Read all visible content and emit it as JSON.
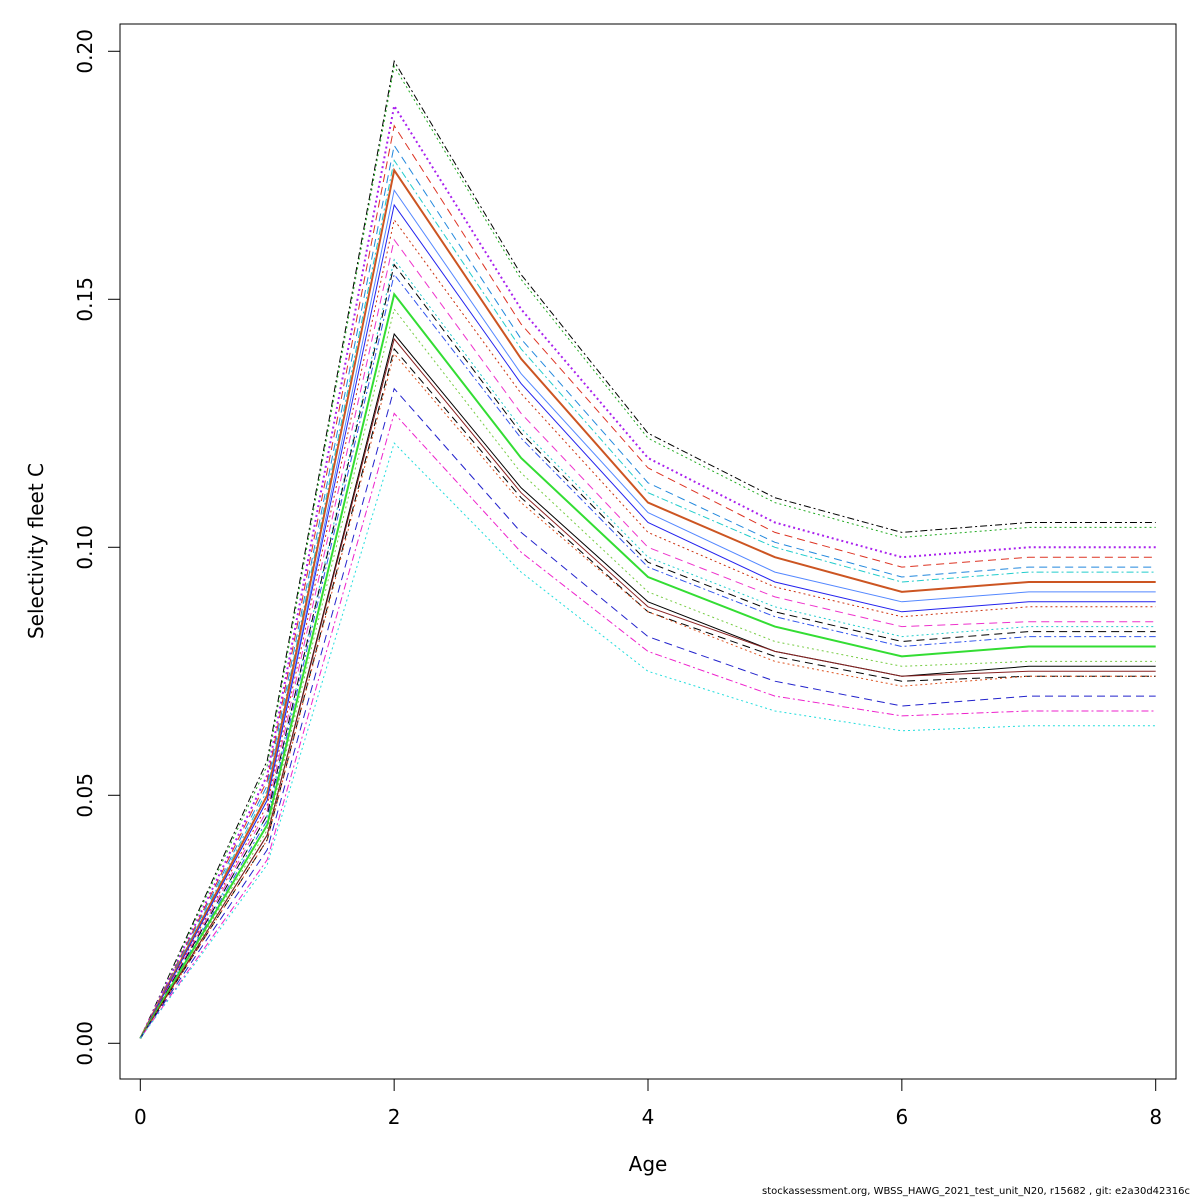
{
  "chart_data": {
    "type": "line",
    "title": "",
    "xlabel": "Age",
    "ylabel": "Selectivity fleet C",
    "x": [
      0,
      1,
      2,
      3,
      4,
      5,
      6,
      7,
      8
    ],
    "xlim": [
      -0.16,
      8.16
    ],
    "ylim": [
      -0.0072,
      0.2055
    ],
    "xticks": [
      "0",
      "2",
      "4",
      "6",
      "8"
    ],
    "yticks": [
      "0.00",
      "0.05",
      "0.10",
      "0.15",
      "0.20"
    ],
    "grid": false,
    "legend": "none",
    "series": [
      {
        "values": [
          0.001,
          0.057,
          0.198,
          0.155,
          0.123,
          0.11,
          0.103,
          0.105,
          0.105
        ],
        "color": "#000000",
        "dash": "dashdot",
        "width": 1
      },
      {
        "values": [
          0.001,
          0.056,
          0.197,
          0.154,
          0.122,
          0.109,
          0.102,
          0.104,
          0.104
        ],
        "color": "#22aa22",
        "dash": "dotted",
        "width": 1
      },
      {
        "values": [
          0.001,
          0.054,
          0.189,
          0.148,
          0.118,
          0.105,
          0.098,
          0.1,
          0.1
        ],
        "color": "#aa22ee",
        "dash": "dotted",
        "width": 2
      },
      {
        "values": [
          0.001,
          0.053,
          0.185,
          0.145,
          0.116,
          0.103,
          0.096,
          0.098,
          0.098
        ],
        "color": "#dd3322",
        "dash": "dashed",
        "width": 1
      },
      {
        "values": [
          0.001,
          0.052,
          0.181,
          0.142,
          0.113,
          0.101,
          0.094,
          0.096,
          0.096
        ],
        "color": "#2288dd",
        "dash": "dashed",
        "width": 1
      },
      {
        "values": [
          0.001,
          0.051,
          0.178,
          0.14,
          0.111,
          0.1,
          0.093,
          0.095,
          0.095
        ],
        "color": "#22cccc",
        "dash": "dashdot",
        "width": 1
      },
      {
        "values": [
          0.001,
          0.05,
          0.176,
          0.138,
          0.109,
          0.098,
          0.091,
          0.093,
          0.093
        ],
        "color": "#cc5522",
        "dash": "solid",
        "width": 2
      },
      {
        "values": [
          0.001,
          0.049,
          0.172,
          0.135,
          0.107,
          0.095,
          0.089,
          0.091,
          0.091
        ],
        "color": "#5588ff",
        "dash": "solid",
        "width": 1
      },
      {
        "values": [
          0.001,
          0.049,
          0.169,
          0.133,
          0.105,
          0.093,
          0.087,
          0.089,
          0.089
        ],
        "color": "#2222ee",
        "dash": "solid",
        "width": 1
      },
      {
        "values": [
          0.001,
          0.048,
          0.166,
          0.131,
          0.103,
          0.092,
          0.086,
          0.088,
          0.088
        ],
        "color": "#cc3311",
        "dash": "dotted",
        "width": 1
      },
      {
        "values": [
          0.001,
          0.047,
          0.162,
          0.127,
          0.1,
          0.09,
          0.084,
          0.085,
          0.085
        ],
        "color": "#ee33cc",
        "dash": "dashed",
        "width": 1
      },
      {
        "values": [
          0.001,
          0.046,
          0.158,
          0.124,
          0.098,
          0.088,
          0.082,
          0.084,
          0.084
        ],
        "color": "#22cccc",
        "dash": "dotted",
        "width": 1
      },
      {
        "values": [
          0.001,
          0.046,
          0.157,
          0.123,
          0.097,
          0.087,
          0.081,
          0.083,
          0.083
        ],
        "color": "#000000",
        "dash": "dashed",
        "width": 1
      },
      {
        "values": [
          0.001,
          0.045,
          0.155,
          0.122,
          0.096,
          0.086,
          0.08,
          0.082,
          0.082
        ],
        "color": "#3355ee",
        "dash": "dashdot",
        "width": 1
      },
      {
        "values": [
          0.001,
          0.044,
          0.151,
          0.118,
          0.094,
          0.084,
          0.078,
          0.08,
          0.08
        ],
        "color": "#33dd33",
        "dash": "solid",
        "width": 2
      },
      {
        "values": [
          0.001,
          0.043,
          0.148,
          0.115,
          0.091,
          0.081,
          0.076,
          0.077,
          0.077
        ],
        "color": "#77cc44",
        "dash": "dotted",
        "width": 1
      },
      {
        "values": [
          0.001,
          0.042,
          0.143,
          0.112,
          0.089,
          0.079,
          0.074,
          0.076,
          0.076
        ],
        "color": "#000000",
        "dash": "solid",
        "width": 1
      },
      {
        "values": [
          0.001,
          0.042,
          0.142,
          0.111,
          0.088,
          0.079,
          0.074,
          0.075,
          0.075
        ],
        "color": "#882222",
        "dash": "solid",
        "width": 1
      },
      {
        "values": [
          0.001,
          0.041,
          0.14,
          0.11,
          0.087,
          0.078,
          0.073,
          0.074,
          0.074
        ],
        "color": "#000000",
        "dash": "dashed",
        "width": 1
      },
      {
        "values": [
          0.001,
          0.041,
          0.139,
          0.109,
          0.087,
          0.077,
          0.072,
          0.074,
          0.074
        ],
        "color": "#dd5522",
        "dash": "dotted",
        "width": 1
      },
      {
        "values": [
          0.001,
          0.039,
          0.132,
          0.103,
          0.082,
          0.073,
          0.068,
          0.07,
          0.07
        ],
        "color": "#2222cc",
        "dash": "dashed",
        "width": 1
      },
      {
        "values": [
          0.001,
          0.037,
          0.127,
          0.099,
          0.079,
          0.07,
          0.066,
          0.067,
          0.067
        ],
        "color": "#ee22cc",
        "dash": "dashdot",
        "width": 1
      },
      {
        "values": [
          0.001,
          0.036,
          0.121,
          0.095,
          0.075,
          0.067,
          0.063,
          0.064,
          0.064
        ],
        "color": "#22dddd",
        "dash": "dotted",
        "width": 1
      }
    ]
  },
  "footer": {
    "text": "stockassessment.org, WBSS_HAWG_2021_test_unit_N20, r15682 , git: e2a30d42316c"
  }
}
